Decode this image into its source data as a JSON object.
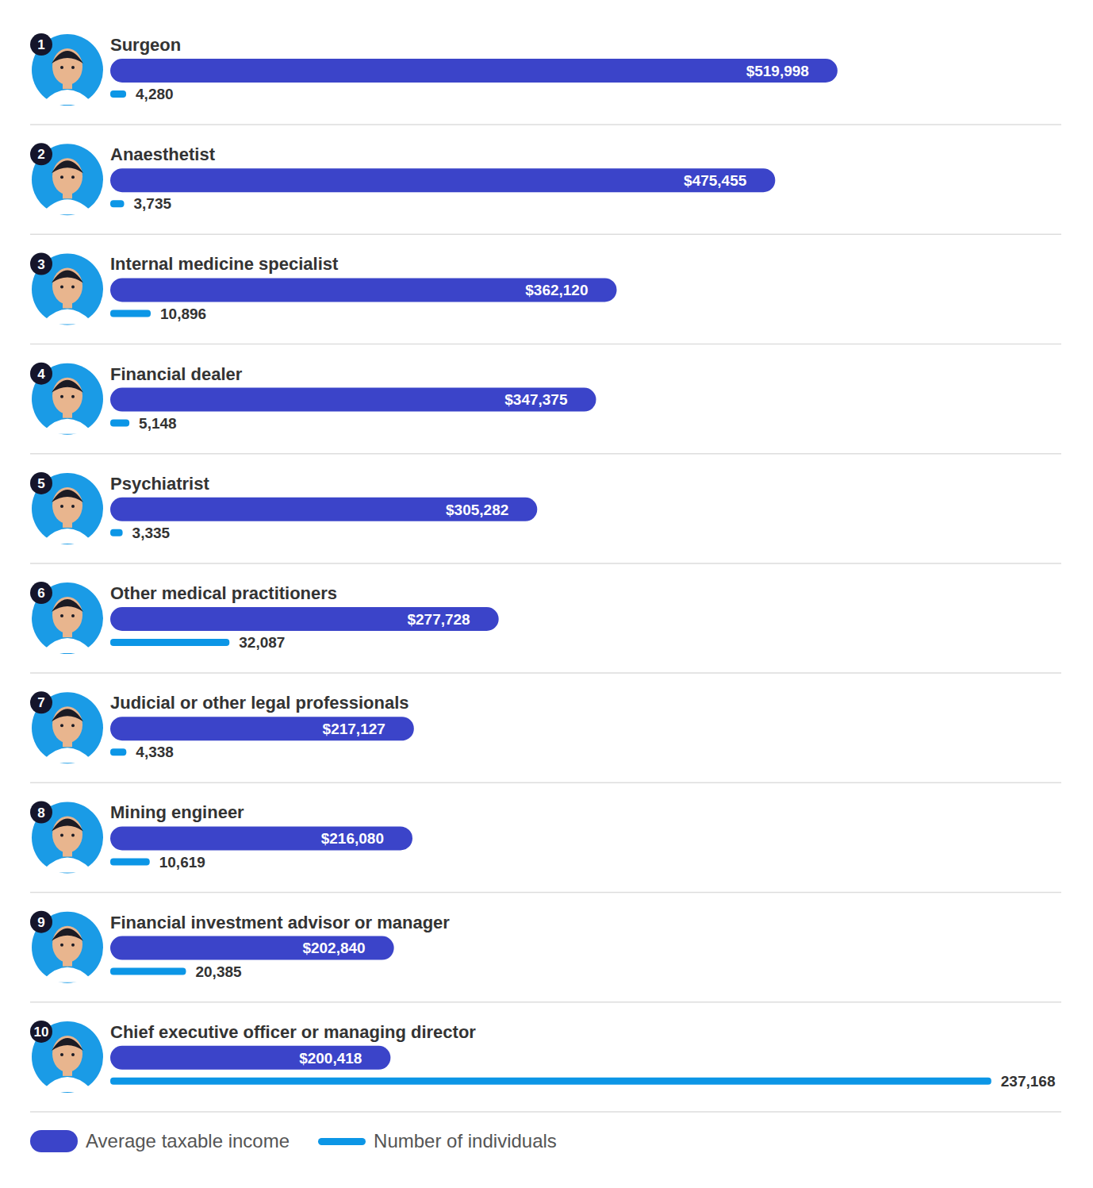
{
  "chart_data": {
    "type": "bar",
    "orientation": "horizontal",
    "categories": [
      "Surgeon",
      "Anaesthetist",
      "Internal medicine specialist",
      "Financial dealer",
      "Psychiatrist",
      "Other medical practitioners",
      "Judicial or other legal professionals",
      "Mining engineer",
      "Financial investment advisor or manager",
      "Chief executive officer or managing director"
    ],
    "ranks": [
      1,
      2,
      3,
      4,
      5,
      6,
      7,
      8,
      9,
      10
    ],
    "series": [
      {
        "name": "Average taxable income",
        "color": "#3b44c9",
        "values": [
          519998,
          475455,
          362120,
          347375,
          305282,
          277728,
          217127,
          216080,
          202840,
          200418
        ],
        "value_labels": [
          "$519,998",
          "$475,455",
          "$362,120",
          "$347,375",
          "$305,282",
          "$277,728",
          "$217,127",
          "$216,080",
          "$202,840",
          "$200,418"
        ]
      },
      {
        "name": "Number of individuals",
        "color": "#0c96e6",
        "axis": "y2",
        "values": [
          4280,
          3735,
          10896,
          5148,
          3335,
          32087,
          4338,
          10619,
          20385,
          237168
        ],
        "value_labels": [
          "4,280",
          "3,735",
          "10,896",
          "5,148",
          "3,335",
          "32,087",
          "4,338",
          "10,619",
          "20,385",
          "237,168"
        ]
      }
    ],
    "ylim": [
      0,
      680000
    ],
    "yticks": [
      0,
      680000
    ],
    "y2lim": [
      0,
      256000
    ],
    "y2ticks": [
      0,
      256000
    ],
    "data_labels": true,
    "tick_labels": false,
    "grid": false,
    "legend": "bottom"
  }
}
